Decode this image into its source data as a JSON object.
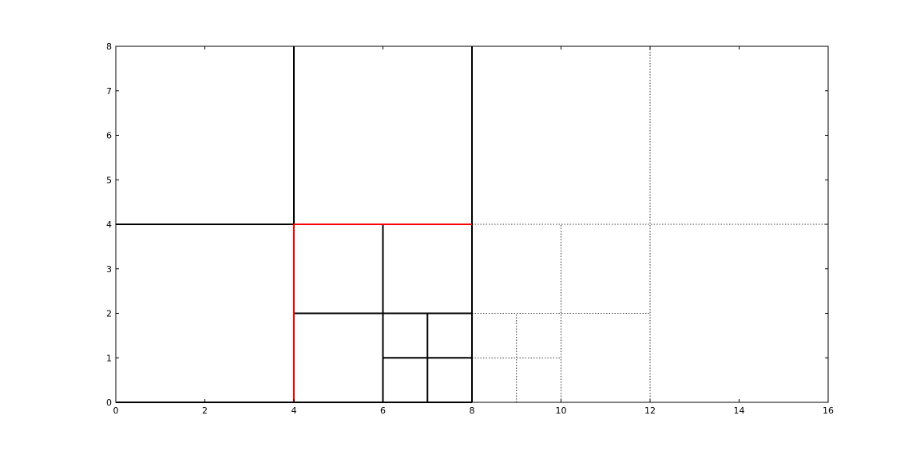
{
  "chart_data": {
    "type": "line",
    "title": "",
    "xlabel": "",
    "ylabel": "",
    "xlim": [
      0,
      16
    ],
    "ylim": [
      0,
      8
    ],
    "x_ticks": [
      0,
      2,
      4,
      6,
      8,
      10,
      12,
      14,
      16
    ],
    "y_ticks": [
      0,
      1,
      2,
      3,
      4,
      5,
      6,
      7,
      8
    ],
    "grid": false,
    "legend": "none",
    "colors": {
      "solid": "#000000",
      "highlight": "#ff0000",
      "dotted": "#000000"
    },
    "segments": {
      "solid": [
        [
          [
            0,
            0
          ],
          [
            8,
            0
          ]
        ],
        [
          [
            0,
            4
          ],
          [
            4,
            4
          ]
        ],
        [
          [
            4,
            4
          ],
          [
            4,
            8
          ]
        ],
        [
          [
            8,
            0
          ],
          [
            8,
            8
          ]
        ],
        [
          [
            4,
            2
          ],
          [
            8,
            2
          ]
        ],
        [
          [
            6,
            0
          ],
          [
            6,
            4
          ]
        ],
        [
          [
            6,
            1
          ],
          [
            8,
            1
          ]
        ],
        [
          [
            7,
            0
          ],
          [
            7,
            2
          ]
        ]
      ],
      "highlight": [
        [
          [
            4,
            0
          ],
          [
            4,
            4
          ]
        ],
        [
          [
            4,
            4
          ],
          [
            8,
            4
          ]
        ]
      ],
      "dotted": [
        [
          [
            8,
            4
          ],
          [
            16,
            4
          ]
        ],
        [
          [
            12,
            0
          ],
          [
            12,
            8
          ]
        ],
        [
          [
            10,
            0
          ],
          [
            10,
            4
          ]
        ],
        [
          [
            8,
            2
          ],
          [
            12,
            2
          ]
        ],
        [
          [
            8,
            1
          ],
          [
            10,
            1
          ]
        ],
        [
          [
            9,
            0
          ],
          [
            9,
            2
          ]
        ]
      ]
    }
  }
}
